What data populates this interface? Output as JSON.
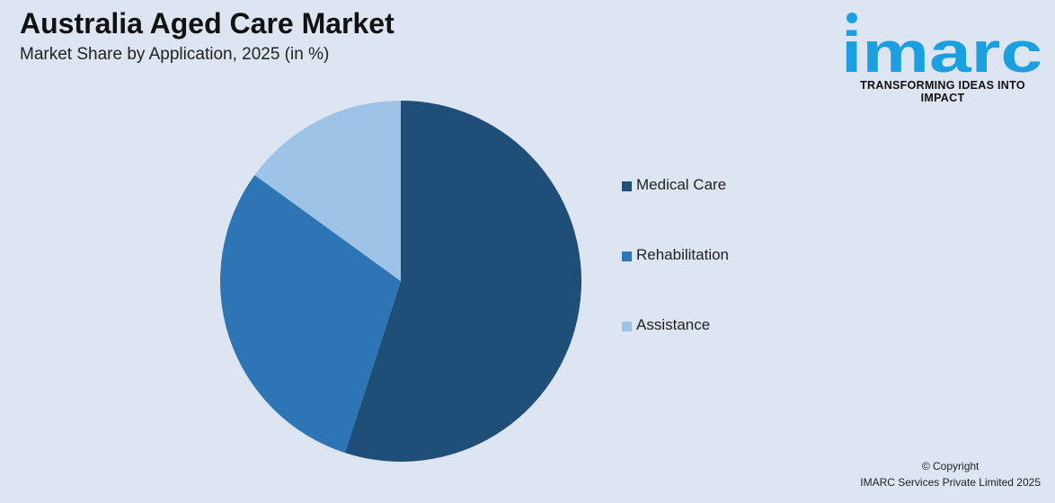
{
  "header": {
    "title": "Australia Aged Care Market",
    "subtitle": "Market Share by Application, 2025 (in %)"
  },
  "logo": {
    "wordmark": "imarc",
    "tagline": "TRANSFORMING IDEAS INTO IMPACT",
    "color": "#1a9fe0"
  },
  "chart_data": {
    "type": "pie",
    "title": "Australia Aged Care Market",
    "subtitle": "Market Share by Application, 2025 (in %)",
    "categories": [
      "Medical Care",
      "Rehabilitation",
      "Assistance"
    ],
    "values": [
      55,
      30,
      15
    ],
    "colors": [
      "#1f4e79",
      "#2e75b6",
      "#9dc3e6"
    ],
    "legend_position": "right",
    "data_labels": false
  },
  "footer": {
    "copyright": "© Copyright",
    "company": "IMARC Services Private Limited 2025"
  }
}
